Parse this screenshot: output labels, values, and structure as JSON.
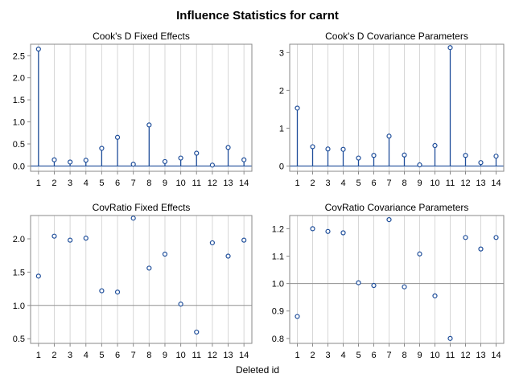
{
  "title": "Influence Statistics for carnt",
  "xlabel": "Deleted id",
  "colors": {
    "marker": "#1f4e9a",
    "grid": "#d7d7d7",
    "frame": "#8a8a8a",
    "refline": "#909090"
  },
  "chart_data": [
    {
      "type": "needle",
      "title": "Cook's D Fixed Effects",
      "x": [
        1,
        2,
        3,
        4,
        5,
        6,
        7,
        8,
        9,
        10,
        11,
        12,
        13,
        14
      ],
      "values": [
        2.65,
        0.14,
        0.09,
        0.13,
        0.4,
        0.65,
        0.04,
        0.93,
        0.1,
        0.18,
        0.29,
        0.02,
        0.42,
        0.14
      ],
      "ylim": [
        -0.12,
        2.76
      ],
      "yticks": [
        "0.0",
        "0.5",
        "1.0",
        "1.5",
        "2.0",
        "2.5"
      ],
      "baseline": 0
    },
    {
      "type": "needle",
      "title": "Cook's D Covariance Parameters",
      "x": [
        1,
        2,
        3,
        4,
        5,
        6,
        7,
        8,
        9,
        10,
        11,
        12,
        13,
        14
      ],
      "values": [
        1.53,
        0.51,
        0.45,
        0.44,
        0.21,
        0.28,
        0.79,
        0.29,
        0.03,
        0.54,
        3.13,
        0.28,
        0.09,
        0.26
      ],
      "ylim": [
        -0.14,
        3.22
      ],
      "yticks": [
        "0",
        "1",
        "2",
        "3"
      ],
      "baseline": 0
    },
    {
      "type": "scatter",
      "title": "CovRatio Fixed Effects",
      "x": [
        1,
        2,
        3,
        4,
        5,
        6,
        7,
        8,
        9,
        10,
        11,
        12,
        13,
        14
      ],
      "values": [
        1.44,
        2.04,
        1.98,
        2.01,
        1.22,
        1.2,
        2.31,
        1.56,
        1.77,
        1.02,
        0.6,
        1.94,
        1.74,
        1.98
      ],
      "ylim": [
        0.43,
        2.35
      ],
      "yticks": [
        "0.5",
        "1.0",
        "1.5",
        "2.0"
      ],
      "reference": 1.0
    },
    {
      "type": "scatter",
      "title": "CovRatio Covariance Parameters",
      "x": [
        1,
        2,
        3,
        4,
        5,
        6,
        7,
        8,
        9,
        10,
        11,
        12,
        13,
        14
      ],
      "values": [
        0.88,
        1.2,
        1.19,
        1.185,
        1.003,
        0.993,
        1.233,
        0.988,
        1.108,
        0.955,
        0.8,
        1.168,
        1.126,
        1.168
      ],
      "ylim": [
        0.782,
        1.248
      ],
      "yticks": [
        "0.8",
        "0.9",
        "1.0",
        "1.1",
        "1.2"
      ],
      "reference": 1.0
    }
  ]
}
